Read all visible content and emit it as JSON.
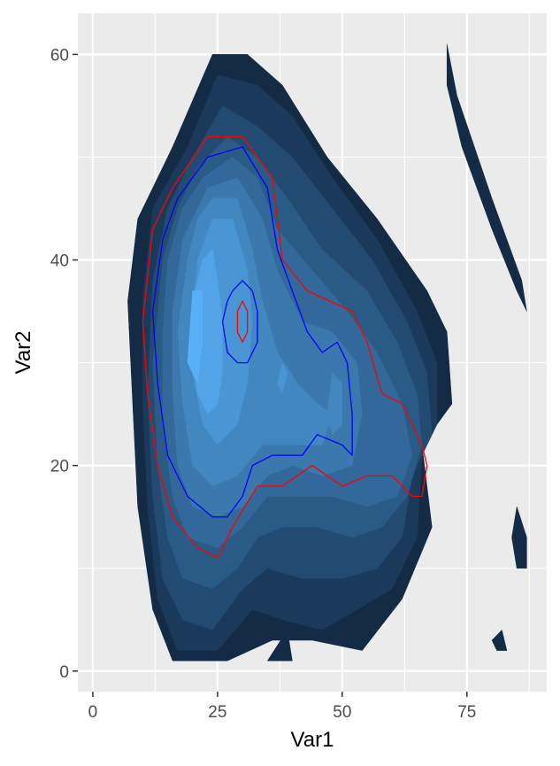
{
  "chart_data": {
    "type": "contour",
    "title": "",
    "xlabel": "Var1",
    "ylabel": "Var2",
    "xlim": [
      -3,
      91
    ],
    "ylim": [
      -2,
      64
    ],
    "x_ticks": [
      0,
      25,
      50,
      75
    ],
    "y_ticks": [
      0,
      20,
      40,
      60
    ],
    "x_tick_labels": [
      "0",
      "25",
      "50",
      "75"
    ],
    "y_tick_labels": [
      "0",
      "20",
      "40",
      "60"
    ],
    "grid": true,
    "fill_levels": [
      {
        "level": 1,
        "color": "#142b45",
        "regions": [
          [
            [
              71,
              61
            ],
            [
              73,
              56
            ],
            [
              80,
              46
            ],
            [
              86,
              38
            ],
            [
              87,
              35
            ],
            [
              85,
              37
            ],
            [
              80,
              43
            ],
            [
              74,
              51
            ],
            [
              71,
              57
            ]
          ],
          [
            [
              16,
              51
            ],
            [
              24,
              60
            ],
            [
              31,
              60
            ],
            [
              38,
              57
            ],
            [
              47,
              50
            ],
            [
              57,
              44
            ],
            [
              67,
              37
            ],
            [
              71,
              33
            ],
            [
              72,
              26
            ],
            [
              66,
              22
            ],
            [
              68,
              14
            ],
            [
              62,
              7
            ],
            [
              54,
              2
            ],
            [
              44,
              3
            ],
            [
              36,
              3
            ],
            [
              27,
              1
            ],
            [
              16,
              1
            ],
            [
              12,
              6
            ],
            [
              9,
              16
            ],
            [
              8,
              26
            ],
            [
              7,
              36
            ],
            [
              9,
              44
            ]
          ],
          [
            [
              85,
              16
            ],
            [
              87,
              13
            ],
            [
              87,
              10
            ],
            [
              85,
              10
            ],
            [
              84,
              13
            ]
          ],
          [
            [
              82,
              4
            ],
            [
              83,
              2
            ],
            [
              81,
              2
            ],
            [
              80,
              3
            ]
          ],
          [
            [
              35,
              1
            ],
            [
              39,
              4
            ],
            [
              40,
              1
            ]
          ]
        ]
      },
      {
        "level": 2,
        "color": "#1b3a5b",
        "regions": [
          [
            [
              19,
              51
            ],
            [
              25,
              58
            ],
            [
              33,
              57
            ],
            [
              40,
              54
            ],
            [
              48,
              48
            ],
            [
              57,
              42
            ],
            [
              65,
              35
            ],
            [
              69,
              30
            ],
            [
              69,
              24
            ],
            [
              66,
              21
            ],
            [
              65,
              13
            ],
            [
              60,
              8
            ],
            [
              53,
              6
            ],
            [
              46,
              4
            ],
            [
              38,
              5
            ],
            [
              32,
              6
            ],
            [
              25,
              2
            ],
            [
              17,
              2
            ],
            [
              13,
              7
            ],
            [
              11,
              16
            ],
            [
              10,
              26
            ],
            [
              10,
              36
            ],
            [
              12,
              45
            ]
          ]
        ]
      },
      {
        "level": 3,
        "color": "#234a70",
        "regions": [
          [
            [
              20,
              50
            ],
            [
              26,
              55
            ],
            [
              33,
              53
            ],
            [
              40,
              50
            ],
            [
              48,
              45
            ],
            [
              56,
              40
            ],
            [
              63,
              34
            ],
            [
              67,
              29
            ],
            [
              68,
              23
            ],
            [
              64,
              19
            ],
            [
              62,
              13
            ],
            [
              57,
              10
            ],
            [
              50,
              9
            ],
            [
              42,
              9
            ],
            [
              35,
              10
            ],
            [
              30,
              8
            ],
            [
              24,
              4
            ],
            [
              18,
              5
            ],
            [
              14,
              9
            ],
            [
              12,
              17
            ],
            [
              11,
              27
            ],
            [
              12,
              38
            ],
            [
              15,
              45
            ]
          ]
        ]
      },
      {
        "level": 4,
        "color": "#2a5a86",
        "regions": [
          [
            [
              21,
              49
            ],
            [
              27,
              52
            ],
            [
              33,
              50
            ],
            [
              39,
              46
            ],
            [
              46,
              41
            ],
            [
              55,
              37
            ],
            [
              61,
              32
            ],
            [
              65,
              27
            ],
            [
              66,
              22
            ],
            [
              63,
              17
            ],
            [
              58,
              14
            ],
            [
              52,
              13
            ],
            [
              45,
              14
            ],
            [
              38,
              14
            ],
            [
              33,
              13
            ],
            [
              29,
              10
            ],
            [
              24,
              8
            ],
            [
              18,
              9
            ],
            [
              15,
              13
            ],
            [
              13,
              20
            ],
            [
              12,
              30
            ],
            [
              14,
              40
            ],
            [
              17,
              45
            ]
          ]
        ]
      },
      {
        "level": 5,
        "color": "#32699a",
        "regions": [
          [
            [
              22,
              48
            ],
            [
              28,
              50
            ],
            [
              33,
              48
            ],
            [
              37,
              43
            ],
            [
              44,
              39
            ],
            [
              51,
              35
            ],
            [
              57,
              31
            ],
            [
              62,
              26
            ],
            [
              64,
              21
            ],
            [
              61,
              17
            ],
            [
              55,
              16
            ],
            [
              48,
              17
            ],
            [
              41,
              17
            ],
            [
              35,
              17
            ],
            [
              30,
              14
            ],
            [
              25,
              12
            ],
            [
              19,
              13
            ],
            [
              16,
              17
            ],
            [
              14,
              24
            ],
            [
              14,
              33
            ],
            [
              15,
              40
            ],
            [
              18,
              45
            ]
          ]
        ]
      },
      {
        "level": 6,
        "color": "#3a78ad",
        "regions": [
          [
            [
              23,
              47
            ],
            [
              29,
              48
            ],
            [
              34,
              44
            ],
            [
              37,
              39
            ],
            [
              42,
              34
            ],
            [
              48,
              33
            ],
            [
              53,
              30
            ],
            [
              54,
              25
            ],
            [
              52,
              20
            ],
            [
              46,
              19
            ],
            [
              40,
              20
            ],
            [
              35,
              19
            ],
            [
              30,
              16
            ],
            [
              25,
              15
            ],
            [
              20,
              16
            ],
            [
              17,
              20
            ],
            [
              16,
              27
            ],
            [
              16,
              35
            ],
            [
              18,
              42
            ]
          ]
        ]
      },
      {
        "level": 7,
        "color": "#4287c0",
        "regions": [
          [
            [
              24,
              46
            ],
            [
              29,
              46
            ],
            [
              32,
              41
            ],
            [
              34,
              36
            ],
            [
              37,
              31
            ],
            [
              41,
              28
            ],
            [
              45,
              26
            ],
            [
              48,
              25
            ],
            [
              46,
              22
            ],
            [
              40,
              22
            ],
            [
              34,
              22
            ],
            [
              29,
              19
            ],
            [
              24,
              18
            ],
            [
              20,
              20
            ],
            [
              18,
              26
            ],
            [
              17,
              33
            ],
            [
              19,
              40
            ],
            [
              21,
              44
            ]
          ],
          [
            [
              48,
              29
            ],
            [
              50,
              28
            ],
            [
              50,
              24
            ],
            [
              48,
              23
            ],
            [
              47,
              25
            ]
          ]
        ]
      },
      {
        "level": 8,
        "color": "#4a95d3",
        "regions": [
          [
            [
              24,
              44
            ],
            [
              28,
              44
            ],
            [
              31,
              39
            ],
            [
              32,
              34
            ],
            [
              31,
              28
            ],
            [
              29,
              24
            ],
            [
              25,
              22
            ],
            [
              22,
              24
            ],
            [
              20,
              29
            ],
            [
              20,
              35
            ],
            [
              21,
              40
            ]
          ],
          [
            [
              38,
              30
            ],
            [
              39,
              29
            ],
            [
              38,
              27
            ],
            [
              37,
              28
            ]
          ]
        ]
      },
      {
        "level": 9,
        "color": "#52a4e6",
        "regions": [
          [
            [
              22,
              40
            ],
            [
              24,
              41
            ],
            [
              25,
              38
            ],
            [
              26,
              34
            ],
            [
              26,
              29
            ],
            [
              25,
              26
            ],
            [
              23,
              25
            ],
            [
              21,
              27
            ],
            [
              20,
              31
            ],
            [
              20,
              36
            ]
          ]
        ]
      },
      {
        "level": 10,
        "color": "#5ab0f5",
        "regions": [
          [
            [
              20,
              37
            ],
            [
              22,
              37
            ],
            [
              22,
              32
            ],
            [
              21,
              28
            ],
            [
              19,
              30
            ]
          ]
        ]
      }
    ],
    "lines": [
      {
        "color": "#ff0000",
        "path": [
          [
            23,
            52
          ],
          [
            30,
            52
          ],
          [
            36,
            48
          ],
          [
            38,
            40
          ],
          [
            43,
            37
          ],
          [
            52,
            35
          ],
          [
            55,
            32
          ],
          [
            58,
            27
          ],
          [
            62,
            26
          ],
          [
            66,
            22
          ],
          [
            67,
            20
          ],
          [
            66,
            17
          ],
          [
            64,
            17
          ],
          [
            60,
            19
          ],
          [
            55,
            19
          ],
          [
            50,
            18
          ],
          [
            44,
            20
          ],
          [
            38,
            18
          ],
          [
            33,
            18
          ],
          [
            28,
            14
          ],
          [
            25,
            11
          ],
          [
            21,
            12
          ],
          [
            16,
            15
          ],
          [
            13,
            20
          ],
          [
            11,
            27
          ],
          [
            10,
            34
          ],
          [
            12,
            43
          ],
          [
            16,
            47
          ]
        ]
      },
      {
        "color": "#0000ff",
        "path": [
          [
            23,
            50
          ],
          [
            30,
            51
          ],
          [
            35,
            47
          ],
          [
            37,
            41
          ],
          [
            40,
            37
          ],
          [
            43,
            33
          ],
          [
            46,
            31
          ],
          [
            49,
            32
          ],
          [
            51,
            30
          ],
          [
            52,
            25
          ],
          [
            52,
            21
          ],
          [
            50,
            22
          ],
          [
            45,
            23
          ],
          [
            42,
            21
          ],
          [
            36,
            21
          ],
          [
            32,
            20
          ],
          [
            30,
            17
          ],
          [
            27,
            15
          ],
          [
            24,
            15
          ],
          [
            19,
            17
          ],
          [
            15,
            21
          ],
          [
            13,
            28
          ],
          [
            12,
            35
          ],
          [
            14,
            42
          ],
          [
            17,
            46
          ]
        ]
      },
      {
        "color": "#0000ff",
        "path": [
          [
            28,
            37
          ],
          [
            30,
            38
          ],
          [
            32,
            37
          ],
          [
            33,
            35
          ],
          [
            33,
            32
          ],
          [
            31,
            30
          ],
          [
            29,
            30
          ],
          [
            27,
            31
          ],
          [
            26,
            34
          ],
          [
            27,
            36
          ]
        ]
      },
      {
        "color": "#ff0000",
        "path": [
          [
            29,
            35
          ],
          [
            30,
            36
          ],
          [
            31,
            35
          ],
          [
            31,
            33
          ],
          [
            30,
            32
          ],
          [
            29,
            33
          ]
        ]
      }
    ]
  }
}
